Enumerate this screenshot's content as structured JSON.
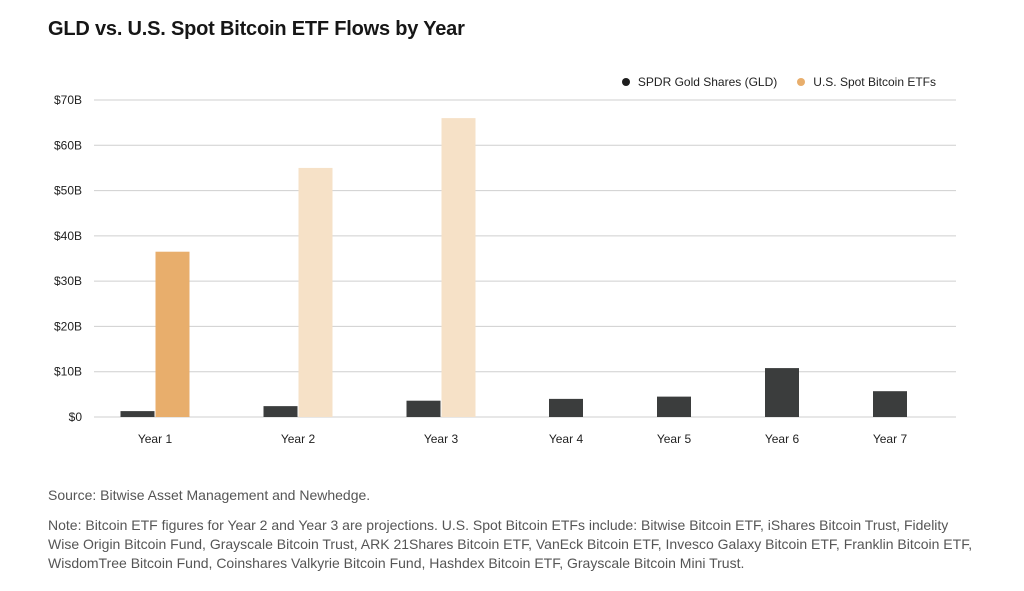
{
  "title": "GLD vs. U.S. Spot Bitcoin ETF Flows by Year",
  "source": "Source: Bitwise Asset Management and Newhedge.",
  "note": "Note: Bitcoin ETF figures for Year 2 and Year 3 are projections. U.S. Spot Bitcoin ETFs include: Bitwise Bitcoin ETF, iShares Bitcoin Trust, Fidelity Wise Origin Bitcoin Fund, Grayscale Bitcoin Trust, ARK 21Shares Bitcoin ETF, VanEck Bitcoin ETF, Invesco Galaxy Bitcoin ETF, Franklin Bitcoin ETF, WisdomTree Bitcoin Fund, Coinshares Valkyrie Bitcoin Fund, Hashdex Bitcoin ETF, Grayscale Bitcoin Mini Trust.",
  "colors": {
    "gld": "#3b3d3d",
    "btc": "#e8ae6c",
    "btc_projection": "#f6e1c7",
    "grid": "#cfcfcf",
    "axis_text": "#222222"
  },
  "chart_data": {
    "type": "bar",
    "title": "GLD vs. U.S. Spot Bitcoin ETF Flows by Year",
    "categories": [
      "Year 1",
      "Year 2",
      "Year 3",
      "Year 4",
      "Year 5",
      "Year 6",
      "Year 7"
    ],
    "series": [
      {
        "name": "SPDR Gold Shares (GLD)",
        "values": [
          1.3,
          2.4,
          3.6,
          4.0,
          4.5,
          10.8,
          5.7
        ]
      },
      {
        "name": "U.S. Spot Bitcoin ETFs",
        "values": [
          36.5,
          55.0,
          66.0,
          null,
          null,
          null,
          null
        ],
        "projected": [
          false,
          true,
          true,
          null,
          null,
          null,
          null
        ]
      }
    ],
    "y_ticks": [
      "$0",
      "$10B",
      "$20B",
      "$30B",
      "$40B",
      "$50B",
      "$60B",
      "$70B"
    ],
    "ylim": [
      0,
      70
    ],
    "xlabel": "",
    "ylabel": "",
    "grid": true,
    "legend_position": "top-right"
  }
}
